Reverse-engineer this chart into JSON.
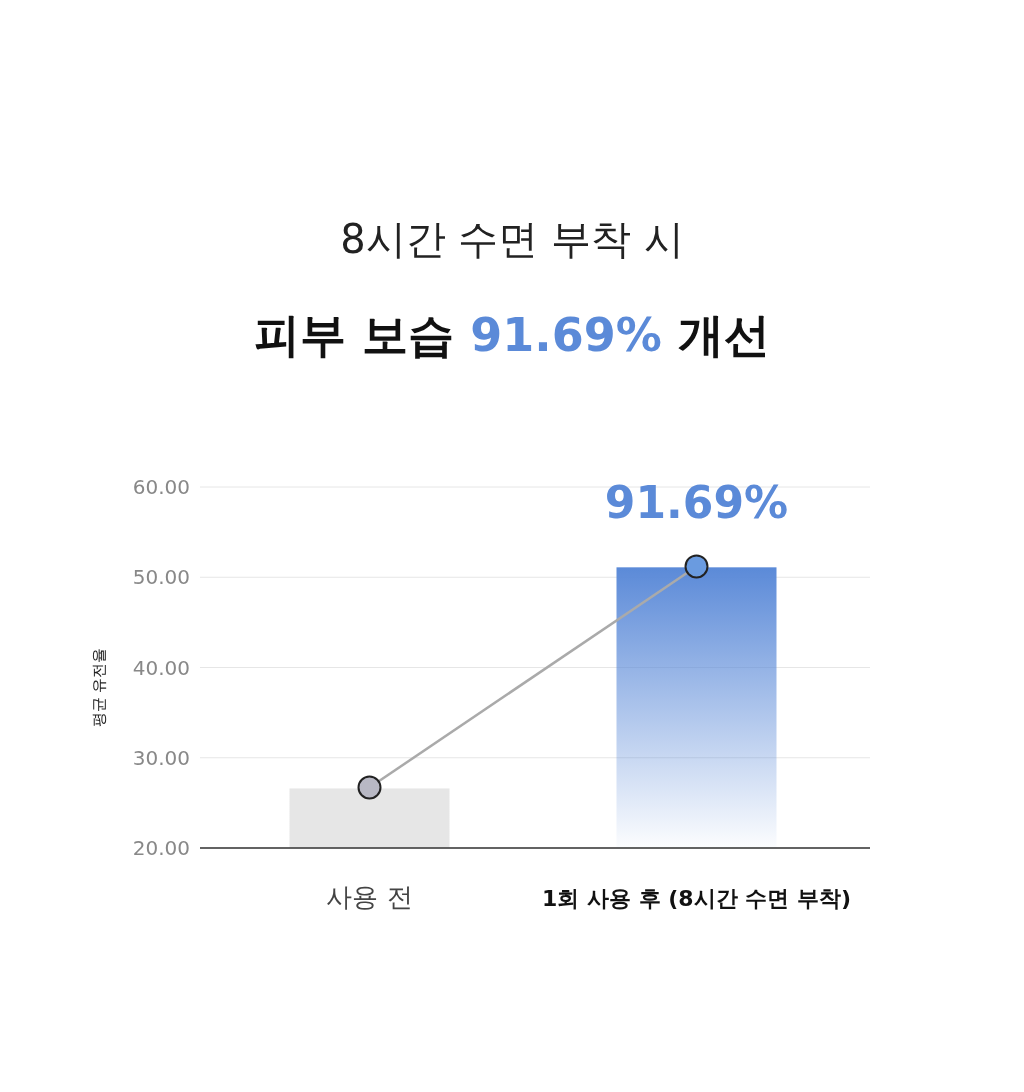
{
  "chart_data": {
    "type": "bar",
    "title": "8시간 수면 부착 시",
    "subtitle": "피부 보습 91.69% 개선",
    "ylabel": "평균 유전율",
    "categories": [
      "사용 전",
      "1회 사용 후 (8시간 수면 부착)"
    ],
    "series": [
      {
        "colors": [
          "#e6e6e6",
          "#5b8ad8"
        ],
        "values": [
          26.6,
          51.1
        ]
      },
      {
        "type": "line",
        "color": "#aaaaaa",
        "colors": [
          "#b8b8c4",
          "#6a9be0"
        ],
        "values": [
          26.7,
          51.2
        ]
      }
    ],
    "marker": "circle",
    "ylim": [
      20,
      60
    ],
    "yticks": [
      {
        "value": 20,
        "label": "20.00"
      },
      {
        "value": 30,
        "label": "30.00"
      },
      {
        "value": 40,
        "label": "40.00"
      },
      {
        "value": 50,
        "label": "50.00"
      },
      {
        "value": 60,
        "label": "60.00"
      }
    ],
    "grid": "y",
    "annotations": [
      "91.69%"
    ]
  }
}
